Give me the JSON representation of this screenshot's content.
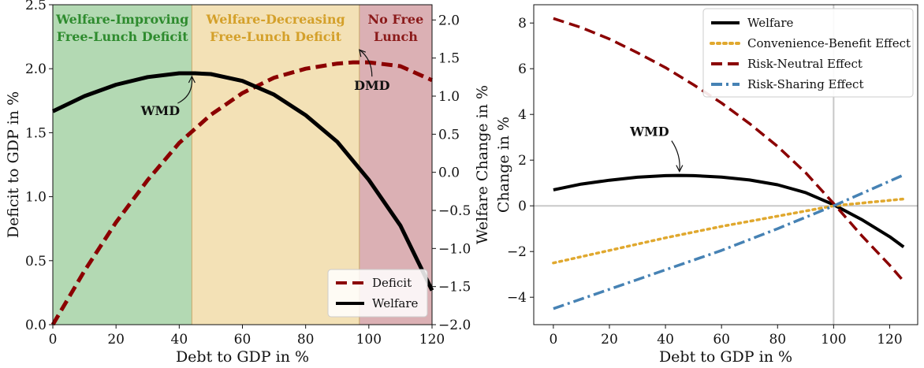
{
  "chart_data": [
    {
      "type": "line",
      "xlabel": "Debt to GDP in %",
      "ylabel": "Deficit to GDP in %",
      "y2label": "Welfare Change in %",
      "xlim": [
        0,
        120
      ],
      "ylim": [
        0,
        2.5
      ],
      "y2lim": [
        -2.0,
        2.2
      ],
      "x_ticks": [
        0,
        20,
        40,
        60,
        80,
        100,
        120
      ],
      "y_ticks": [
        0.0,
        0.5,
        1.0,
        1.5,
        2.0,
        2.5
      ],
      "y2_ticks": [
        -2.0,
        -1.5,
        -1.0,
        -0.5,
        0.0,
        0.5,
        1.0,
        1.5,
        2.0
      ],
      "regions": [
        {
          "label_lines": [
            "Welfare-Improving",
            "Free-Lunch Deficit"
          ],
          "x_range": [
            0,
            44
          ],
          "color": "#b3d9b3",
          "text_color": "#2e8b2e"
        },
        {
          "label_lines": [
            "Welfare-Decreasing",
            "Free-Lunch Deficit"
          ],
          "x_range": [
            44,
            97
          ],
          "color": "#f3e1b6",
          "text_color": "#d4a02a"
        },
        {
          "label_lines": [
            "No Free",
            "Lunch"
          ],
          "x_range": [
            97,
            120
          ],
          "color": "#dbb0b4",
          "text_color": "#8b1a1a"
        }
      ],
      "series": [
        {
          "name": "Deficit",
          "axis": "left",
          "style": "dashed",
          "color": "#8b0000",
          "x": [
            0,
            10,
            20,
            30,
            40,
            50,
            60,
            70,
            80,
            90,
            95,
            100,
            110,
            120
          ],
          "y": [
            0.0,
            0.42,
            0.8,
            1.13,
            1.42,
            1.64,
            1.81,
            1.93,
            2.0,
            2.04,
            2.05,
            2.05,
            2.02,
            1.91
          ]
        },
        {
          "name": "Welfare",
          "axis": "right",
          "style": "solid",
          "color": "#000000",
          "x": [
            0,
            10,
            20,
            30,
            40,
            45,
            50,
            60,
            70,
            80,
            90,
            100,
            110,
            120
          ],
          "y": [
            0.8,
            1.0,
            1.15,
            1.25,
            1.3,
            1.3,
            1.29,
            1.2,
            1.02,
            0.75,
            0.4,
            -0.1,
            -0.7,
            -1.55
          ]
        }
      ],
      "annotations": [
        {
          "text": "WMD",
          "x": 44,
          "y2": 1.3
        },
        {
          "text": "DMD",
          "x": 97,
          "y2": 1.65
        }
      ],
      "legend": {
        "placement": "lower-right"
      }
    },
    {
      "type": "line",
      "xlabel": "Debt to GDP in %",
      "ylabel": "Change in %",
      "xlim": [
        -7,
        130
      ],
      "ylim": [
        -5.2,
        8.8
      ],
      "x_ticks": [
        0,
        20,
        40,
        60,
        80,
        100,
        120
      ],
      "y_ticks": [
        -4,
        -2,
        0,
        2,
        4,
        6,
        8
      ],
      "reference_lines": {
        "x": 100,
        "y": 0
      },
      "series": [
        {
          "name": "Welfare",
          "style": "solid",
          "color": "#000000",
          "x": [
            0,
            10,
            20,
            30,
            40,
            45,
            50,
            60,
            70,
            80,
            90,
            100,
            110,
            120,
            125
          ],
          "y": [
            0.7,
            0.95,
            1.12,
            1.25,
            1.32,
            1.33,
            1.32,
            1.26,
            1.13,
            0.92,
            0.58,
            0.05,
            -0.6,
            -1.35,
            -1.8
          ]
        },
        {
          "name": "Convenience-Benefit Effect",
          "style": "dotted",
          "color": "#e0a82e",
          "x": [
            0,
            20,
            40,
            60,
            80,
            100,
            125
          ],
          "y": [
            -2.5,
            -1.95,
            -1.4,
            -0.9,
            -0.45,
            0.0,
            0.3
          ]
        },
        {
          "name": "Risk-Neutral Effect",
          "style": "dashed",
          "color": "#8b0000",
          "x": [
            0,
            10,
            20,
            30,
            40,
            50,
            60,
            70,
            80,
            90,
            100,
            110,
            120,
            125
          ],
          "y": [
            8.2,
            7.8,
            7.3,
            6.7,
            6.05,
            5.3,
            4.5,
            3.6,
            2.6,
            1.45,
            0.1,
            -1.3,
            -2.6,
            -3.3
          ]
        },
        {
          "name": "Risk-Sharing Effect",
          "style": "dashdot",
          "color": "#4682b4",
          "x": [
            0,
            20,
            40,
            60,
            80,
            100,
            125
          ],
          "y": [
            -4.5,
            -3.65,
            -2.8,
            -1.95,
            -1.0,
            0.0,
            1.35
          ]
        }
      ],
      "annotations": [
        {
          "text": "WMD",
          "x": 45,
          "y": 1.33
        }
      ],
      "legend": {
        "placement": "top-right"
      }
    }
  ]
}
